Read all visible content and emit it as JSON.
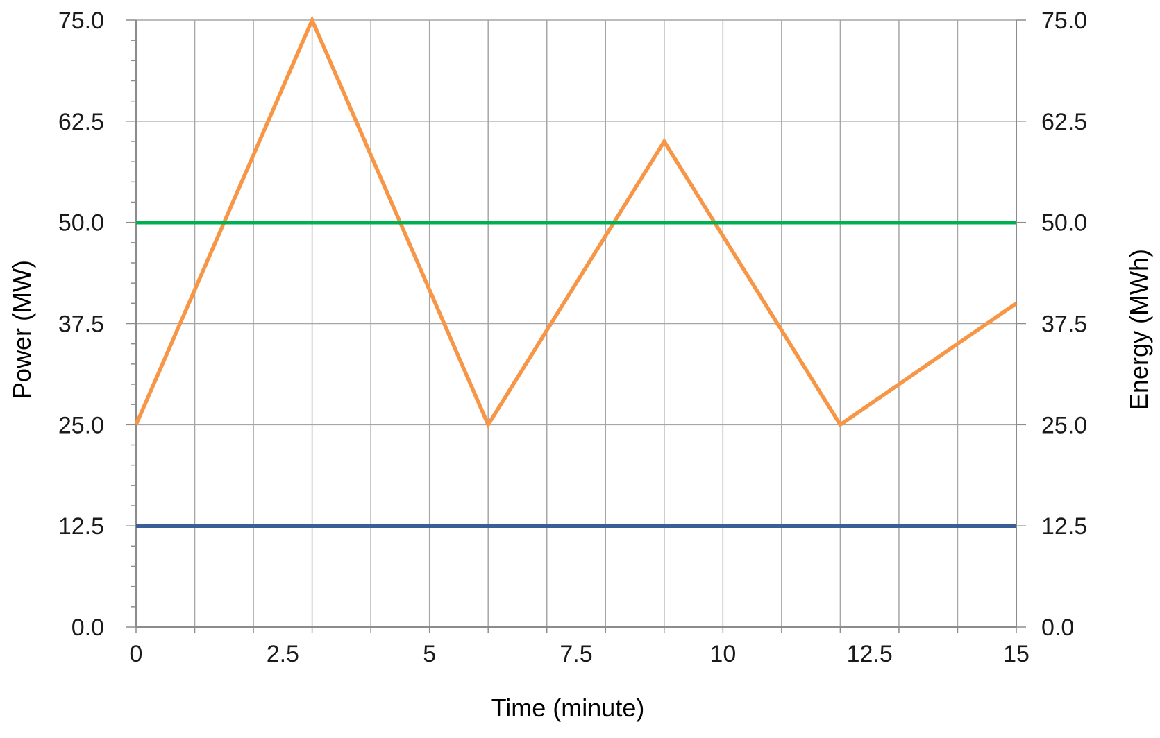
{
  "chart_data": {
    "type": "line",
    "title": "",
    "xlabel": "Time (minute)",
    "ylabel": "Power  (MW)",
    "y2label": "Energy (MWh)",
    "xlim": [
      0,
      15
    ],
    "ylim": [
      0,
      75
    ],
    "y2lim": [
      0,
      75
    ],
    "x_ticks": [
      0,
      2.5,
      5,
      7.5,
      10,
      12.5,
      15
    ],
    "x_tick_labels": [
      "0",
      "2.5",
      "5",
      "7.5",
      "10",
      "12.5",
      "15"
    ],
    "x_gridlines": [
      0,
      1,
      2,
      3,
      4,
      5,
      6,
      7,
      8,
      9,
      10,
      11,
      12,
      13,
      14,
      15
    ],
    "y_ticks": [
      0,
      12.5,
      25,
      37.5,
      50,
      62.5,
      75
    ],
    "y_tick_labels": [
      "0.0",
      "12.5",
      "25.0",
      "37.5",
      "50.0",
      "62.5",
      "75.0"
    ],
    "y2_tick_labels": [
      "0.0",
      "12.5",
      "25.0",
      "37.5",
      "50.0",
      "62.5",
      "75.0"
    ],
    "grid": true,
    "legend": "none",
    "series": [
      {
        "axis": "y2",
        "color": "#F79646",
        "x": [
          0,
          3,
          6,
          9,
          12,
          15
        ],
        "y": [
          25,
          75,
          25,
          60,
          25,
          40
        ]
      },
      {
        "axis": "y",
        "color": "#00B050",
        "x": [
          0,
          15
        ],
        "y": [
          50,
          50
        ]
      },
      {
        "axis": "y",
        "color": "#3A5F97",
        "x": [
          0,
          15
        ],
        "y": [
          12.5,
          12.5
        ]
      }
    ]
  }
}
